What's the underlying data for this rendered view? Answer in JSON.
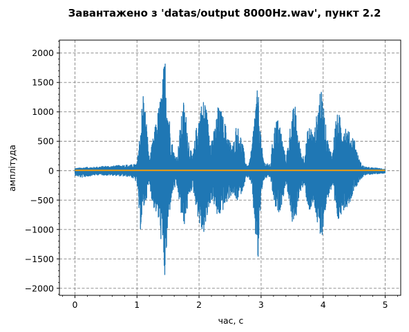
{
  "chart_data": {
    "type": "line",
    "title": "Завантажено з 'datas/output 8000Hz.wav', пункт 2.2",
    "xlabel": "час, с",
    "ylabel": "амплітуда",
    "xlim": [
      -0.25,
      5.25
    ],
    "ylim": [
      -2120,
      2220
    ],
    "x_ticks": [
      0,
      1,
      2,
      3,
      4,
      5
    ],
    "y_ticks": [
      -2000,
      -1500,
      -1000,
      -500,
      0,
      500,
      1000,
      1500,
      2000
    ],
    "grid": true,
    "legend": "none",
    "series": [
      {
        "color": "#1f77b4",
        "envelope": {
          "t": [
            0.0,
            0.1,
            0.2,
            0.3,
            0.4,
            0.5,
            0.6,
            0.7,
            0.8,
            0.9,
            1.0,
            1.05,
            1.1,
            1.15,
            1.2,
            1.25,
            1.3,
            1.35,
            1.4,
            1.45,
            1.5,
            1.55,
            1.6,
            1.65,
            1.7,
            1.75,
            1.8,
            1.85,
            1.9,
            1.95,
            2.0,
            2.05,
            2.1,
            2.15,
            2.2,
            2.25,
            2.3,
            2.35,
            2.4,
            2.45,
            2.5,
            2.55,
            2.6,
            2.65,
            2.7,
            2.75,
            2.8,
            2.85,
            2.9,
            2.95,
            3.0,
            3.05,
            3.1,
            3.15,
            3.2,
            3.25,
            3.3,
            3.35,
            3.4,
            3.45,
            3.5,
            3.55,
            3.6,
            3.65,
            3.7,
            3.75,
            3.8,
            3.85,
            3.9,
            3.95,
            4.0,
            4.05,
            4.1,
            4.15,
            4.2,
            4.25,
            4.3,
            4.35,
            4.4,
            4.45,
            4.5,
            4.55,
            4.6,
            4.65,
            4.7,
            4.8,
            4.9,
            5.0
          ],
          "upper": [
            40,
            50,
            60,
            60,
            70,
            80,
            80,
            90,
            100,
            100,
            120,
            700,
            1400,
            900,
            200,
            500,
            800,
            1100,
            1400,
            2020,
            1200,
            600,
            300,
            250,
            800,
            1200,
            900,
            400,
            250,
            700,
            1000,
            1200,
            1250,
            800,
            600,
            700,
            1100,
            1050,
            900,
            700,
            500,
            450,
            800,
            700,
            500,
            150,
            80,
            400,
            1100,
            1450,
            500,
            150,
            120,
            100,
            700,
            900,
            850,
            500,
            200,
            600,
            1050,
            1100,
            600,
            300,
            250,
            700,
            800,
            600,
            1000,
            1450,
            1200,
            700,
            400,
            300,
            900,
            1000,
            800,
            850,
            700,
            600,
            600,
            300,
            150,
            80,
            60,
            50,
            40,
            30
          ],
          "lower": [
            -80,
            -120,
            -100,
            -80,
            -70,
            -80,
            -80,
            -90,
            -100,
            -100,
            -200,
            -1050,
            -700,
            -500,
            -200,
            -600,
            -700,
            -900,
            -1300,
            -1930,
            -1000,
            -500,
            -300,
            -300,
            -700,
            -1000,
            -750,
            -400,
            -300,
            -600,
            -900,
            -1100,
            -1050,
            -700,
            -500,
            -600,
            -850,
            -750,
            -650,
            -550,
            -450,
            -400,
            -550,
            -450,
            -350,
            -150,
            -100,
            -300,
            -1000,
            -1650,
            -400,
            -150,
            -120,
            -120,
            -500,
            -750,
            -700,
            -500,
            -200,
            -500,
            -900,
            -950,
            -500,
            -300,
            -300,
            -600,
            -750,
            -550,
            -900,
            -1300,
            -1000,
            -600,
            -400,
            -300,
            -800,
            -900,
            -700,
            -650,
            -600,
            -500,
            -300,
            -250,
            -150,
            -100,
            -70,
            -60,
            -50,
            -40
          ]
        }
      },
      {
        "color": "#ff9f00",
        "x": [
          0,
          5
        ],
        "y": [
          5,
          5
        ]
      }
    ]
  }
}
